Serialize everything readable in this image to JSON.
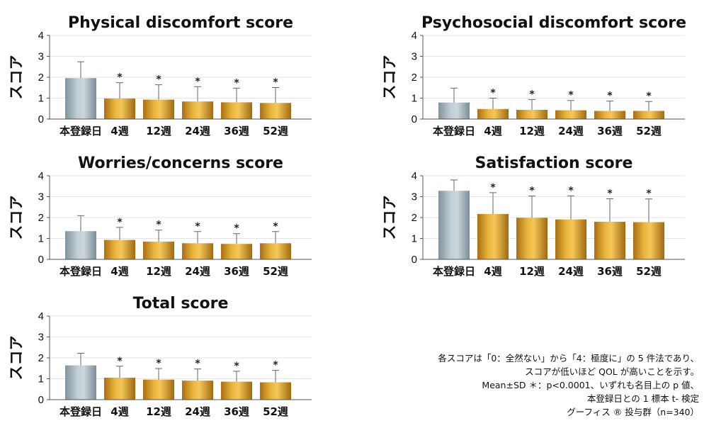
{
  "categories": [
    "本登録日",
    "4週",
    "12週",
    "24週",
    "36週",
    "52週"
  ],
  "ylabel": "スコア",
  "colors": {
    "baseline_bar": "#a9b7bf",
    "followup_bar": "#d79d25",
    "axis": "#555555",
    "grid": "#e4e4e4"
  },
  "chart_data": [
    {
      "type": "bar",
      "title": "Physical discomfort score",
      "ylabel": "スコア",
      "ylim": [
        0,
        4
      ],
      "yticks": [
        0,
        1,
        2,
        3,
        4
      ],
      "grid": true,
      "categories": [
        "本登録日",
        "4週",
        "12週",
        "24週",
        "36週",
        "52週"
      ],
      "values": [
        1.96,
        0.98,
        0.93,
        0.84,
        0.8,
        0.77
      ],
      "sd": [
        0.78,
        0.76,
        0.71,
        0.71,
        0.68,
        0.74
      ],
      "significance": [
        "",
        "*",
        "*",
        "*",
        "*",
        "*"
      ]
    },
    {
      "type": "bar",
      "title": "Psychosocial discomfort score",
      "ylabel": "スコア",
      "ylim": [
        0,
        4
      ],
      "yticks": [
        0,
        1,
        2,
        3,
        4
      ],
      "grid": true,
      "categories": [
        "本登録日",
        "4週",
        "12週",
        "24週",
        "36週",
        "52週"
      ],
      "values": [
        0.79,
        0.48,
        0.44,
        0.42,
        0.39,
        0.39
      ],
      "sd": [
        0.69,
        0.52,
        0.49,
        0.47,
        0.47,
        0.45
      ],
      "significance": [
        "",
        "*",
        "*",
        "*",
        "*",
        "*"
      ]
    },
    {
      "type": "bar",
      "title": "Worries/concerns score",
      "ylabel": "スコア",
      "ylim": [
        0,
        4
      ],
      "yticks": [
        0,
        1,
        2,
        3,
        4
      ],
      "grid": true,
      "categories": [
        "本登録日",
        "4週",
        "12週",
        "24週",
        "36週",
        "52週"
      ],
      "values": [
        1.35,
        0.93,
        0.85,
        0.77,
        0.74,
        0.77
      ],
      "sd": [
        0.74,
        0.6,
        0.55,
        0.56,
        0.49,
        0.56
      ],
      "significance": [
        "",
        "*",
        "*",
        "*",
        "*",
        "*"
      ]
    },
    {
      "type": "bar",
      "title": "Satisfaction score",
      "ylabel": "スコア",
      "ylim": [
        0,
        4
      ],
      "yticks": [
        0,
        1,
        2,
        3,
        4
      ],
      "grid": true,
      "categories": [
        "本登録日",
        "4週",
        "12週",
        "24週",
        "36週",
        "52週"
      ],
      "values": [
        3.28,
        2.17,
        1.99,
        1.91,
        1.8,
        1.78
      ],
      "sd": [
        0.52,
        1.02,
        1.04,
        1.13,
        1.1,
        1.11
      ],
      "significance": [
        "",
        "*",
        "*",
        "*",
        "*",
        "*"
      ]
    },
    {
      "type": "bar",
      "title": "Total score",
      "ylabel": "スコア",
      "ylim": [
        0,
        4
      ],
      "yticks": [
        0,
        1,
        2,
        3,
        4
      ],
      "grid": true,
      "categories": [
        "本登録日",
        "4週",
        "12週",
        "24週",
        "36週",
        "52週"
      ],
      "values": [
        1.64,
        1.05,
        0.96,
        0.91,
        0.86,
        0.83
      ],
      "sd": [
        0.58,
        0.55,
        0.53,
        0.56,
        0.5,
        0.57
      ],
      "significance": [
        "",
        "*",
        "*",
        "*",
        "*",
        "*"
      ]
    }
  ],
  "footnote": {
    "line1": "各スコアは「0：全然ない」から「4：極度に」の 5 件法であり、",
    "line2": "スコアが低いほど QOL が高いことを示す。",
    "line3": "Mean±SD ＊：p<0.0001、いずれも名目上の p 値、",
    "line4": "本登録日との 1 標本 t- 検定",
    "line5": "グーフィス ® 投与群（n=340）"
  }
}
